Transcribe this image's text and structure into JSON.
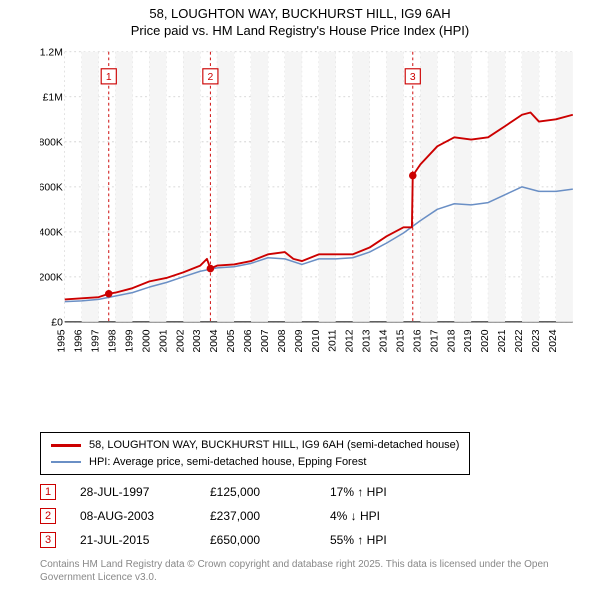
{
  "title": {
    "line1": "58, LOUGHTON WAY, BUCKHURST HILL, IG9 6AH",
    "line2": "Price paid vs. HM Land Registry's House Price Index (HPI)"
  },
  "chart": {
    "type": "line",
    "background_color": "#ffffff",
    "plot_bg": "#ffffff",
    "accent_band_color": "#f5f5f5",
    "grid_color": "#cccccc",
    "grid_dash": "2,3",
    "ylim": [
      0,
      1200000
    ],
    "ytick_step": 200000,
    "ytick_labels": [
      "£0",
      "£200K",
      "£400K",
      "£600K",
      "£800K",
      "£1M",
      "£1.2M"
    ],
    "xlim": [
      1995,
      2025
    ],
    "xtick_step": 1,
    "xtick_labels": [
      "1995",
      "1996",
      "1997",
      "1998",
      "1999",
      "2000",
      "2001",
      "2002",
      "2003",
      "2004",
      "2005",
      "2006",
      "2007",
      "2008",
      "2009",
      "2010",
      "2011",
      "2012",
      "2013",
      "2014",
      "2015",
      "2016",
      "2017",
      "2018",
      "2019",
      "2020",
      "2021",
      "2022",
      "2023",
      "2024"
    ],
    "series": {
      "price_paid": {
        "color": "#cc0000",
        "width": 2,
        "label": "58, LOUGHTON WAY, BUCKHURST HILL, IG9 6AH (semi-detached house)",
        "points": [
          [
            1995.0,
            100000
          ],
          [
            1996.0,
            105000
          ],
          [
            1997.0,
            110000
          ],
          [
            1997.6,
            125000
          ],
          [
            1998.0,
            130000
          ],
          [
            1999.0,
            150000
          ],
          [
            2000.0,
            180000
          ],
          [
            2001.0,
            195000
          ],
          [
            2002.0,
            220000
          ],
          [
            2003.0,
            250000
          ],
          [
            2003.4,
            280000
          ],
          [
            2003.6,
            237000
          ],
          [
            2004.0,
            250000
          ],
          [
            2005.0,
            255000
          ],
          [
            2006.0,
            270000
          ],
          [
            2007.0,
            300000
          ],
          [
            2008.0,
            310000
          ],
          [
            2008.5,
            280000
          ],
          [
            2009.0,
            270000
          ],
          [
            2010.0,
            300000
          ],
          [
            2011.0,
            300000
          ],
          [
            2012.0,
            300000
          ],
          [
            2013.0,
            330000
          ],
          [
            2014.0,
            380000
          ],
          [
            2015.0,
            420000
          ],
          [
            2015.5,
            420000
          ],
          [
            2015.55,
            650000
          ],
          [
            2016.0,
            700000
          ],
          [
            2017.0,
            780000
          ],
          [
            2018.0,
            820000
          ],
          [
            2019.0,
            810000
          ],
          [
            2020.0,
            820000
          ],
          [
            2021.0,
            870000
          ],
          [
            2022.0,
            920000
          ],
          [
            2022.5,
            930000
          ],
          [
            2023.0,
            890000
          ],
          [
            2024.0,
            900000
          ],
          [
            2025.0,
            920000
          ]
        ]
      },
      "hpi": {
        "color": "#6a8fc5",
        "width": 1.6,
        "label": "HPI: Average price, semi-detached house, Epping Forest",
        "points": [
          [
            1995.0,
            90000
          ],
          [
            1996.0,
            93000
          ],
          [
            1997.0,
            100000
          ],
          [
            1998.0,
            115000
          ],
          [
            1999.0,
            130000
          ],
          [
            2000.0,
            155000
          ],
          [
            2001.0,
            175000
          ],
          [
            2002.0,
            200000
          ],
          [
            2003.0,
            225000
          ],
          [
            2004.0,
            240000
          ],
          [
            2005.0,
            245000
          ],
          [
            2006.0,
            260000
          ],
          [
            2007.0,
            285000
          ],
          [
            2008.0,
            280000
          ],
          [
            2009.0,
            255000
          ],
          [
            2010.0,
            280000
          ],
          [
            2011.0,
            280000
          ],
          [
            2012.0,
            285000
          ],
          [
            2013.0,
            310000
          ],
          [
            2014.0,
            350000
          ],
          [
            2015.0,
            395000
          ],
          [
            2016.0,
            450000
          ],
          [
            2017.0,
            500000
          ],
          [
            2018.0,
            525000
          ],
          [
            2019.0,
            520000
          ],
          [
            2020.0,
            530000
          ],
          [
            2021.0,
            565000
          ],
          [
            2022.0,
            600000
          ],
          [
            2023.0,
            580000
          ],
          [
            2024.0,
            580000
          ],
          [
            2025.0,
            590000
          ]
        ]
      }
    },
    "sale_markers": [
      {
        "n": "1",
        "year": 1997.6,
        "price": 125000
      },
      {
        "n": "2",
        "year": 2003.6,
        "price": 237000
      },
      {
        "n": "3",
        "year": 2015.55,
        "price": 650000
      }
    ],
    "marker_line_color": "#cc0000",
    "marker_line_dash": "3,3",
    "marker_dot_color": "#cc0000",
    "marker_box_border": "#cc0000",
    "marker_box_text": "#cc0000"
  },
  "sales": [
    {
      "n": "1",
      "date": "28-JUL-1997",
      "price": "£125,000",
      "delta": "17% ↑ HPI"
    },
    {
      "n": "2",
      "date": "08-AUG-2003",
      "price": "£237,000",
      "delta": "4% ↓ HPI"
    },
    {
      "n": "3",
      "date": "21-JUL-2015",
      "price": "£650,000",
      "delta": "55% ↑ HPI"
    }
  ],
  "footnote": "Contains HM Land Registry data © Crown copyright and database right 2025. This data is licensed under the Open Government Licence v3.0.",
  "legend": {
    "border_color": "#000000"
  }
}
